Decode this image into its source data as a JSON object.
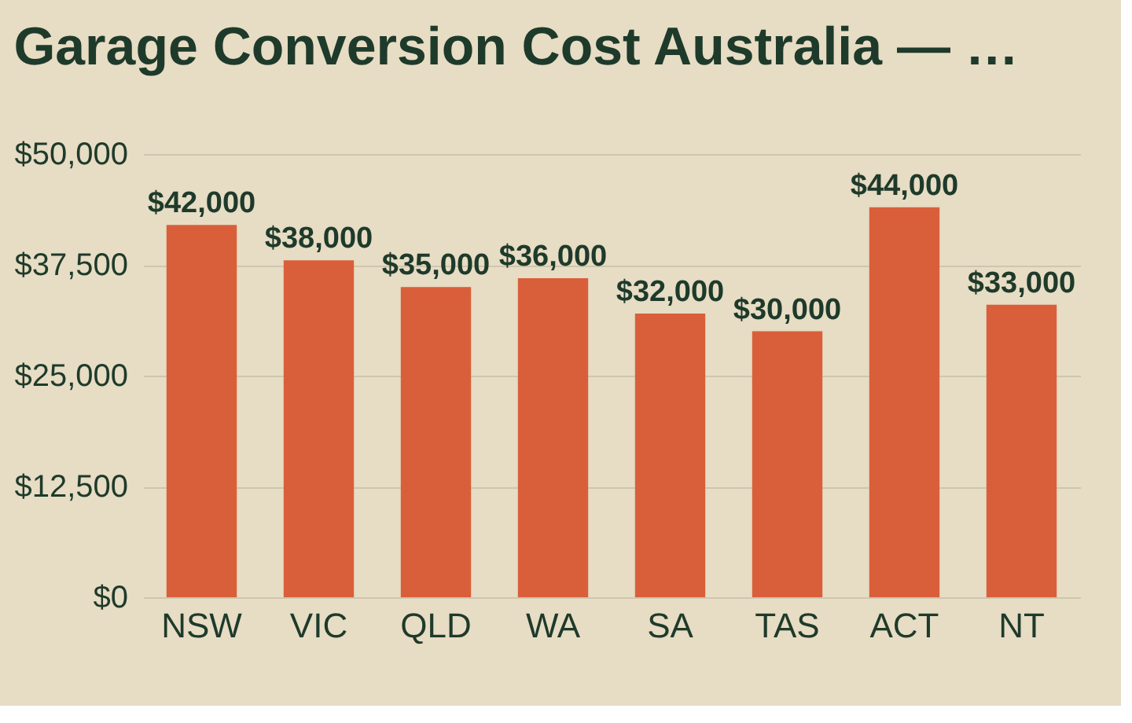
{
  "chart_data": {
    "type": "bar",
    "title": "Garage Conversion Cost Australia — …",
    "categories": [
      "NSW",
      "VIC",
      "QLD",
      "WA",
      "SA",
      "TAS",
      "ACT",
      "NT"
    ],
    "values": [
      42000,
      38000,
      35000,
      36000,
      32000,
      30000,
      44000,
      33000
    ],
    "value_labels": [
      "$42,000",
      "$38,000",
      "$35,000",
      "$36,000",
      "$32,000",
      "$30,000",
      "$44,000",
      "$33,000"
    ],
    "color": "#d95f3b",
    "ylim": [
      0,
      50000
    ],
    "yticks": [
      {
        "value": 0,
        "label": "$0"
      },
      {
        "value": 12500,
        "label": "$12,500"
      },
      {
        "value": 25000,
        "label": "$25,000"
      },
      {
        "value": 37500,
        "label": "$37,500"
      },
      {
        "value": 50000,
        "label": "$50,000"
      }
    ],
    "grid": "y"
  }
}
